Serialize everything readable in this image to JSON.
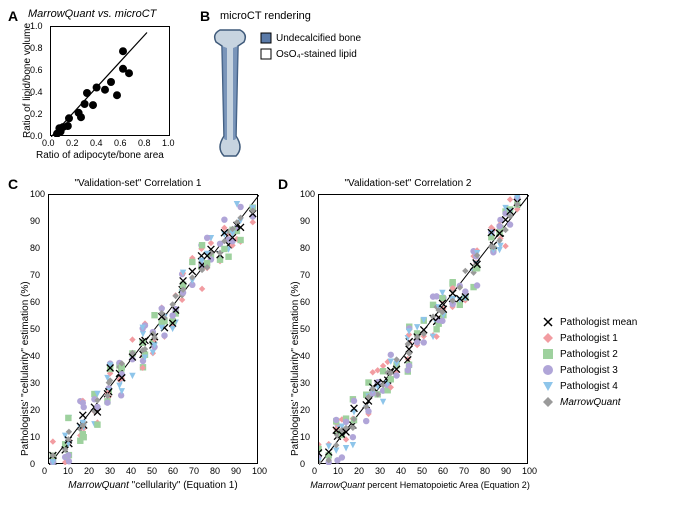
{
  "panelA": {
    "label": "A",
    "title": "MarrowQuant vs. microCT",
    "xlabel": "Ratio of adipocyte/bone area",
    "ylabel": "Ratio of lipid/bone volume",
    "xlim": [
      0,
      1.0
    ],
    "ylim": [
      0,
      1.0
    ],
    "xticks": [
      0.0,
      0.2,
      0.4,
      0.6,
      0.8,
      1.0
    ],
    "yticks": [
      0.0,
      0.2,
      0.4,
      0.6,
      0.8,
      1.0
    ],
    "points": [
      [
        0.05,
        0.03
      ],
      [
        0.07,
        0.08
      ],
      [
        0.08,
        0.05
      ],
      [
        0.1,
        0.09
      ],
      [
        0.14,
        0.1
      ],
      [
        0.15,
        0.17
      ],
      [
        0.23,
        0.22
      ],
      [
        0.25,
        0.18
      ],
      [
        0.28,
        0.3
      ],
      [
        0.35,
        0.29
      ],
      [
        0.3,
        0.4
      ],
      [
        0.38,
        0.45
      ],
      [
        0.45,
        0.43
      ],
      [
        0.5,
        0.5
      ],
      [
        0.55,
        0.38
      ],
      [
        0.6,
        0.62
      ],
      [
        0.6,
        0.78
      ],
      [
        0.65,
        0.58
      ]
    ],
    "marker_color": "#000000",
    "marker_size": 4,
    "line": [
      [
        0,
        0
      ],
      [
        0.8,
        0.95
      ]
    ]
  },
  "panelB": {
    "label": "B",
    "title": "microCT rendering",
    "legend": [
      {
        "text": "Undecalcified bone",
        "fill": "#5a7aa8",
        "type": "square-filled"
      },
      {
        "text": "OsO₄-stained lipid",
        "fill": "#ffffff",
        "type": "square-outline"
      }
    ],
    "bone_color": "#5a7aa8"
  },
  "bottom_common": {
    "xlim": [
      0,
      100
    ],
    "ylim": [
      0,
      100
    ],
    "ticks": [
      0,
      10,
      20,
      30,
      40,
      50,
      60,
      70,
      80,
      90,
      100
    ],
    "ylabel": "Pathologists' \"cellularity\" estimation (%)",
    "series": [
      {
        "name": "Pathologist mean",
        "marker": "x",
        "color": "#000000"
      },
      {
        "name": "Pathologist 1",
        "marker": "diamond",
        "color": "#f29ca1"
      },
      {
        "name": "Pathologist 2",
        "marker": "square",
        "color": "#9ed19e"
      },
      {
        "name": "Pathologist 3",
        "marker": "circle",
        "color": "#b0a5d8"
      },
      {
        "name": "Pathologist 4",
        "marker": "triangleDown",
        "color": "#8ec5ea"
      },
      {
        "name": "MarrowQuant",
        "marker": "diamond",
        "color": "#9a9a9a"
      }
    ],
    "italic_last": true,
    "jitter_sets": 40
  },
  "panelC": {
    "label": "C",
    "title": "\"Validation-set\" Correlation 1",
    "xlabel": "MarrowQuant \"cellularity\" (Equation 1)"
  },
  "panelD": {
    "label": "D",
    "title": "\"Validation-set\" Correlation 2",
    "xlabel": "MarrowQuant percent Hematopoietic Area (Equation 2)"
  }
}
